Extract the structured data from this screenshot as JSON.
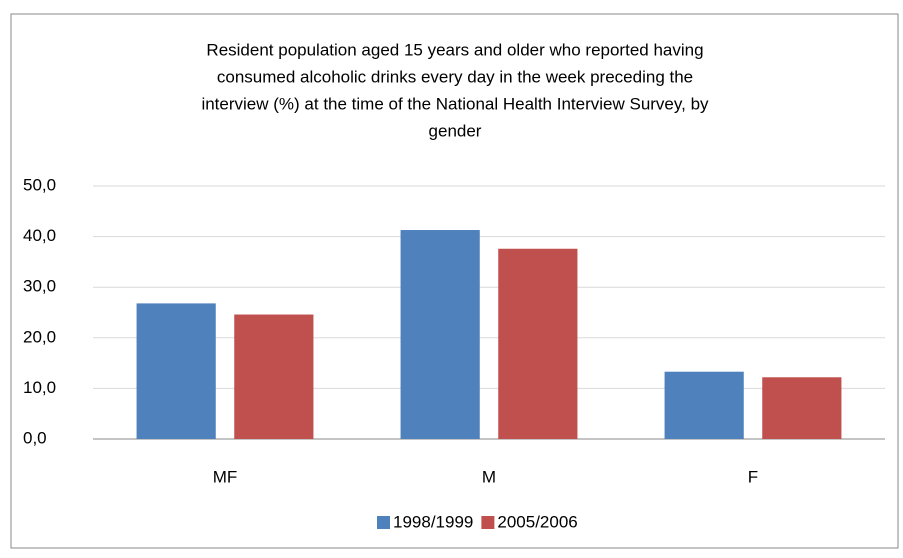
{
  "chart_data": {
    "type": "bar",
    "title": [
      "Resident population aged 15 years and older who reported having",
      "consumed alcoholic drinks every day in the week preceding the",
      "interview (%) at the time of the National Health Interview Survey, by",
      "gender"
    ],
    "categories": [
      "MF",
      "M",
      "F"
    ],
    "series": [
      {
        "name": "1998/1999",
        "color": "#4f81bd",
        "values": [
          26.8,
          41.3,
          13.3
        ]
      },
      {
        "name": "2005/2006",
        "color": "#c0504d",
        "values": [
          24.6,
          37.6,
          12.2
        ]
      }
    ],
    "ylim": [
      0,
      50
    ],
    "yticks": [
      {
        "value": 0,
        "label": "0,0"
      },
      {
        "value": 10,
        "label": "10,0"
      },
      {
        "value": 20,
        "label": "20,0"
      },
      {
        "value": 30,
        "label": "30,0"
      },
      {
        "value": 40,
        "label": "40,0"
      },
      {
        "value": 50,
        "label": "50,0"
      }
    ],
    "grid": true,
    "legend": "bottom"
  }
}
